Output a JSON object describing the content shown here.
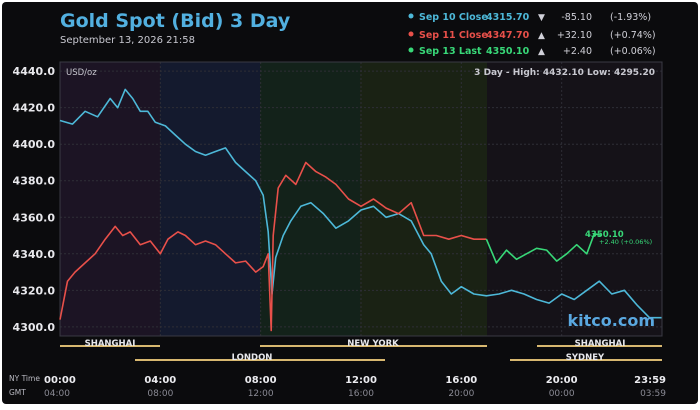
{
  "header": {
    "title": "Gold Spot (Bid) 3 Day",
    "datetime": "September 13, 2026 21:58"
  },
  "legend": [
    {
      "label": "Sep 10 Close",
      "value": "4315.70",
      "arrow": "▼",
      "change": "-85.10",
      "pct": "(-1.93%)",
      "color": "#4db8d8"
    },
    {
      "label": "Sep 11 Close",
      "value": "4347.70",
      "arrow": "▲",
      "change": "+32.10",
      "pct": "(+0.74%)",
      "color": "#e8504a"
    },
    {
      "label": "Sep 13 Last",
      "value": "4350.10",
      "arrow": "▲",
      "change": "+2.40",
      "pct": "(+0.06%)",
      "color": "#38d878"
    }
  ],
  "plot": {
    "unit_label": "USD/oz",
    "range_text": "3 Day - High: 4432.10  Low: 4295.20",
    "watermark": "kitco.com",
    "last_price_label": "4350.10",
    "last_change_label": "+2.40 (+0.06%)"
  },
  "sessions": {
    "shanghai_1": "SHANGHAI",
    "london": "LONDON",
    "new_york": "NEW YORK",
    "shanghai_2": "SHANGHAI",
    "sydney": "SYDNEY"
  },
  "axis": {
    "row_ny_label": "NY Time",
    "row_gmt_label": "GMT",
    "ny_ticks": [
      "00:00",
      "04:00",
      "08:00",
      "12:00",
      "16:00",
      "20:00",
      "23:59"
    ],
    "gmt_ticks": [
      "04:00",
      "08:00",
      "12:00",
      "16:00",
      "20:00",
      "00:00",
      "03:59"
    ]
  },
  "chart_data": {
    "type": "line",
    "ylim": [
      4295,
      4445
    ],
    "yticks": [
      4300.0,
      4320.0,
      4340.0,
      4360.0,
      4380.0,
      4400.0,
      4420.0,
      4440.0
    ],
    "ytick_labels": [
      "4300.0",
      "4320.0",
      "4340.0",
      "4360.0",
      "4380.0",
      "4400.0",
      "4420.0",
      "4440.0"
    ],
    "x_unit": "NY time (hours)",
    "xlim": [
      0,
      24
    ],
    "series": [
      {
        "name": "Sep 10 Close",
        "color": "#4db8d8",
        "x": [
          0,
          0.5,
          1,
          1.5,
          2,
          2.3,
          2.6,
          2.9,
          3.2,
          3.5,
          3.8,
          4.2,
          4.6,
          5,
          5.4,
          5.8,
          6.2,
          6.6,
          7,
          7.4,
          7.8,
          8.1,
          8.3,
          8.45,
          8.6,
          8.9,
          9.2,
          9.6,
          10,
          10.5,
          11,
          11.5,
          12,
          12.5,
          13,
          13.5,
          14,
          14.5,
          14.8,
          15.2,
          15.6,
          16,
          16.5,
          17,
          17.5,
          18,
          18.5,
          19,
          19.5,
          20,
          20.5,
          21,
          21.5,
          22,
          22.5,
          23,
          23.5,
          23.98
        ],
        "y": [
          4413,
          4411,
          4418,
          4415,
          4425,
          4420,
          4430,
          4425,
          4418,
          4418,
          4412,
          4410,
          4405,
          4400,
          4396,
          4394,
          4396,
          4398,
          4390,
          4385,
          4380,
          4372,
          4352,
          4318,
          4338,
          4350,
          4358,
          4366,
          4368,
          4362,
          4354,
          4358,
          4364,
          4366,
          4360,
          4362,
          4358,
          4345,
          4340,
          4325,
          4318,
          4322,
          4318,
          4317,
          4318,
          4320,
          4318,
          4315,
          4313,
          4318,
          4315,
          4320,
          4325,
          4318,
          4320,
          4312,
          4305,
          4305
        ]
      },
      {
        "name": "Sep 11 Close",
        "color": "#e8504a",
        "x": [
          0,
          0.3,
          0.6,
          1,
          1.4,
          1.8,
          2.2,
          2.5,
          2.8,
          3.2,
          3.6,
          4,
          4.3,
          4.7,
          5,
          5.4,
          5.8,
          6.2,
          6.6,
          7,
          7.4,
          7.8,
          8.1,
          8.3,
          8.42,
          8.5,
          8.7,
          9,
          9.4,
          9.8,
          10.2,
          10.6,
          11,
          11.5,
          12,
          12.5,
          13,
          13.5,
          14,
          14.5,
          15,
          15.5,
          16,
          16.5,
          17
        ],
        "y": [
          4304,
          4325,
          4330,
          4335,
          4340,
          4348,
          4355,
          4350,
          4352,
          4345,
          4347,
          4340,
          4348,
          4352,
          4350,
          4345,
          4347,
          4345,
          4340,
          4335,
          4336,
          4330,
          4333,
          4340,
          4298,
          4350,
          4376,
          4383,
          4378,
          4390,
          4385,
          4382,
          4378,
          4370,
          4366,
          4370,
          4365,
          4362,
          4368,
          4350,
          4350,
          4348,
          4350,
          4348,
          4348
        ]
      },
      {
        "name": "Sep 13 Last",
        "color": "#38d878",
        "x": [
          17,
          17.4,
          17.8,
          18.2,
          18.6,
          19,
          19.4,
          19.8,
          20.2,
          20.6,
          21,
          21.3,
          21.6
        ],
        "y": [
          4348,
          4335,
          4342,
          4337,
          4340,
          4343,
          4342,
          4336,
          4340,
          4345,
          4340,
          4351,
          4350
        ]
      }
    ]
  }
}
